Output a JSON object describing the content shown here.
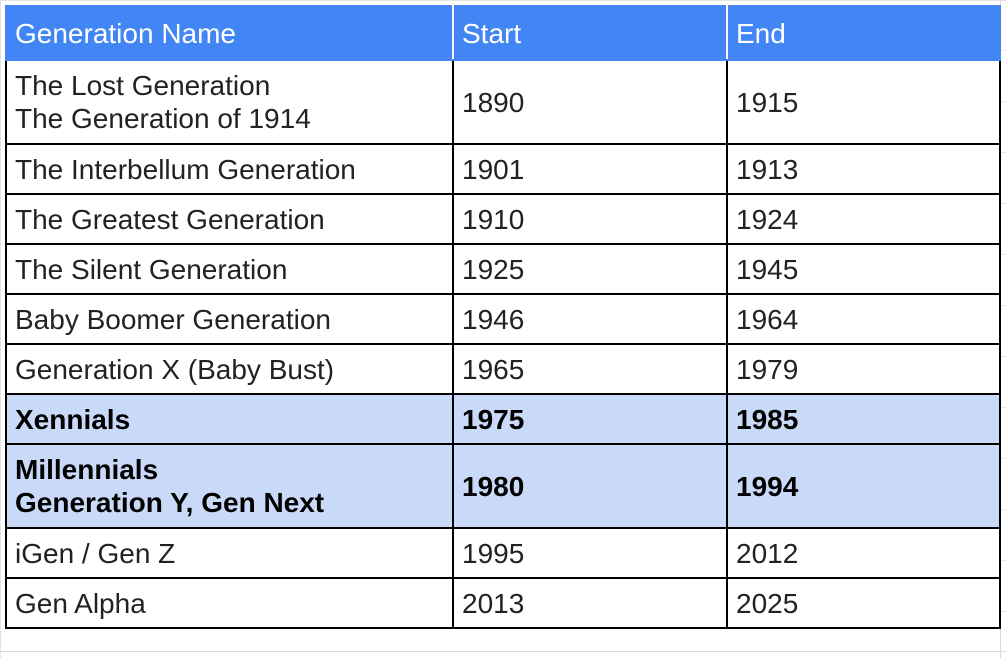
{
  "table": {
    "headers": [
      "Generation Name",
      "Start",
      "End"
    ],
    "rows": [
      {
        "name": [
          "The Lost Generation",
          "The Generation of 1914"
        ],
        "start": "1890",
        "end": "1915",
        "highlight": false
      },
      {
        "name": [
          "The Interbellum Generation"
        ],
        "start": "1901",
        "end": "1913",
        "highlight": false
      },
      {
        "name": [
          "The Greatest Generation"
        ],
        "start": "1910",
        "end": "1924",
        "highlight": false
      },
      {
        "name": [
          "The Silent Generation"
        ],
        "start": "1925",
        "end": "1945",
        "highlight": false
      },
      {
        "name": [
          "Baby Boomer Generation"
        ],
        "start": "1946",
        "end": "1964",
        "highlight": false
      },
      {
        "name": [
          "Generation X (Baby Bust)"
        ],
        "start": "1965",
        "end": "1979",
        "highlight": false
      },
      {
        "name": [
          "Xennials"
        ],
        "start": "1975",
        "end": "1985",
        "highlight": true
      },
      {
        "name": [
          "Millennials",
          "Generation Y, Gen Next"
        ],
        "start": "1980",
        "end": "1994",
        "highlight": true
      },
      {
        "name": [
          "iGen / Gen Z"
        ],
        "start": "1995",
        "end": "2012",
        "highlight": false
      },
      {
        "name": [
          "Gen Alpha"
        ],
        "start": "2013",
        "end": "2025",
        "highlight": false
      }
    ]
  },
  "colors": {
    "header_bg": "#4285f4",
    "header_text": "#ffffff",
    "highlight_bg": "#c9daf8",
    "border": "#000000"
  }
}
